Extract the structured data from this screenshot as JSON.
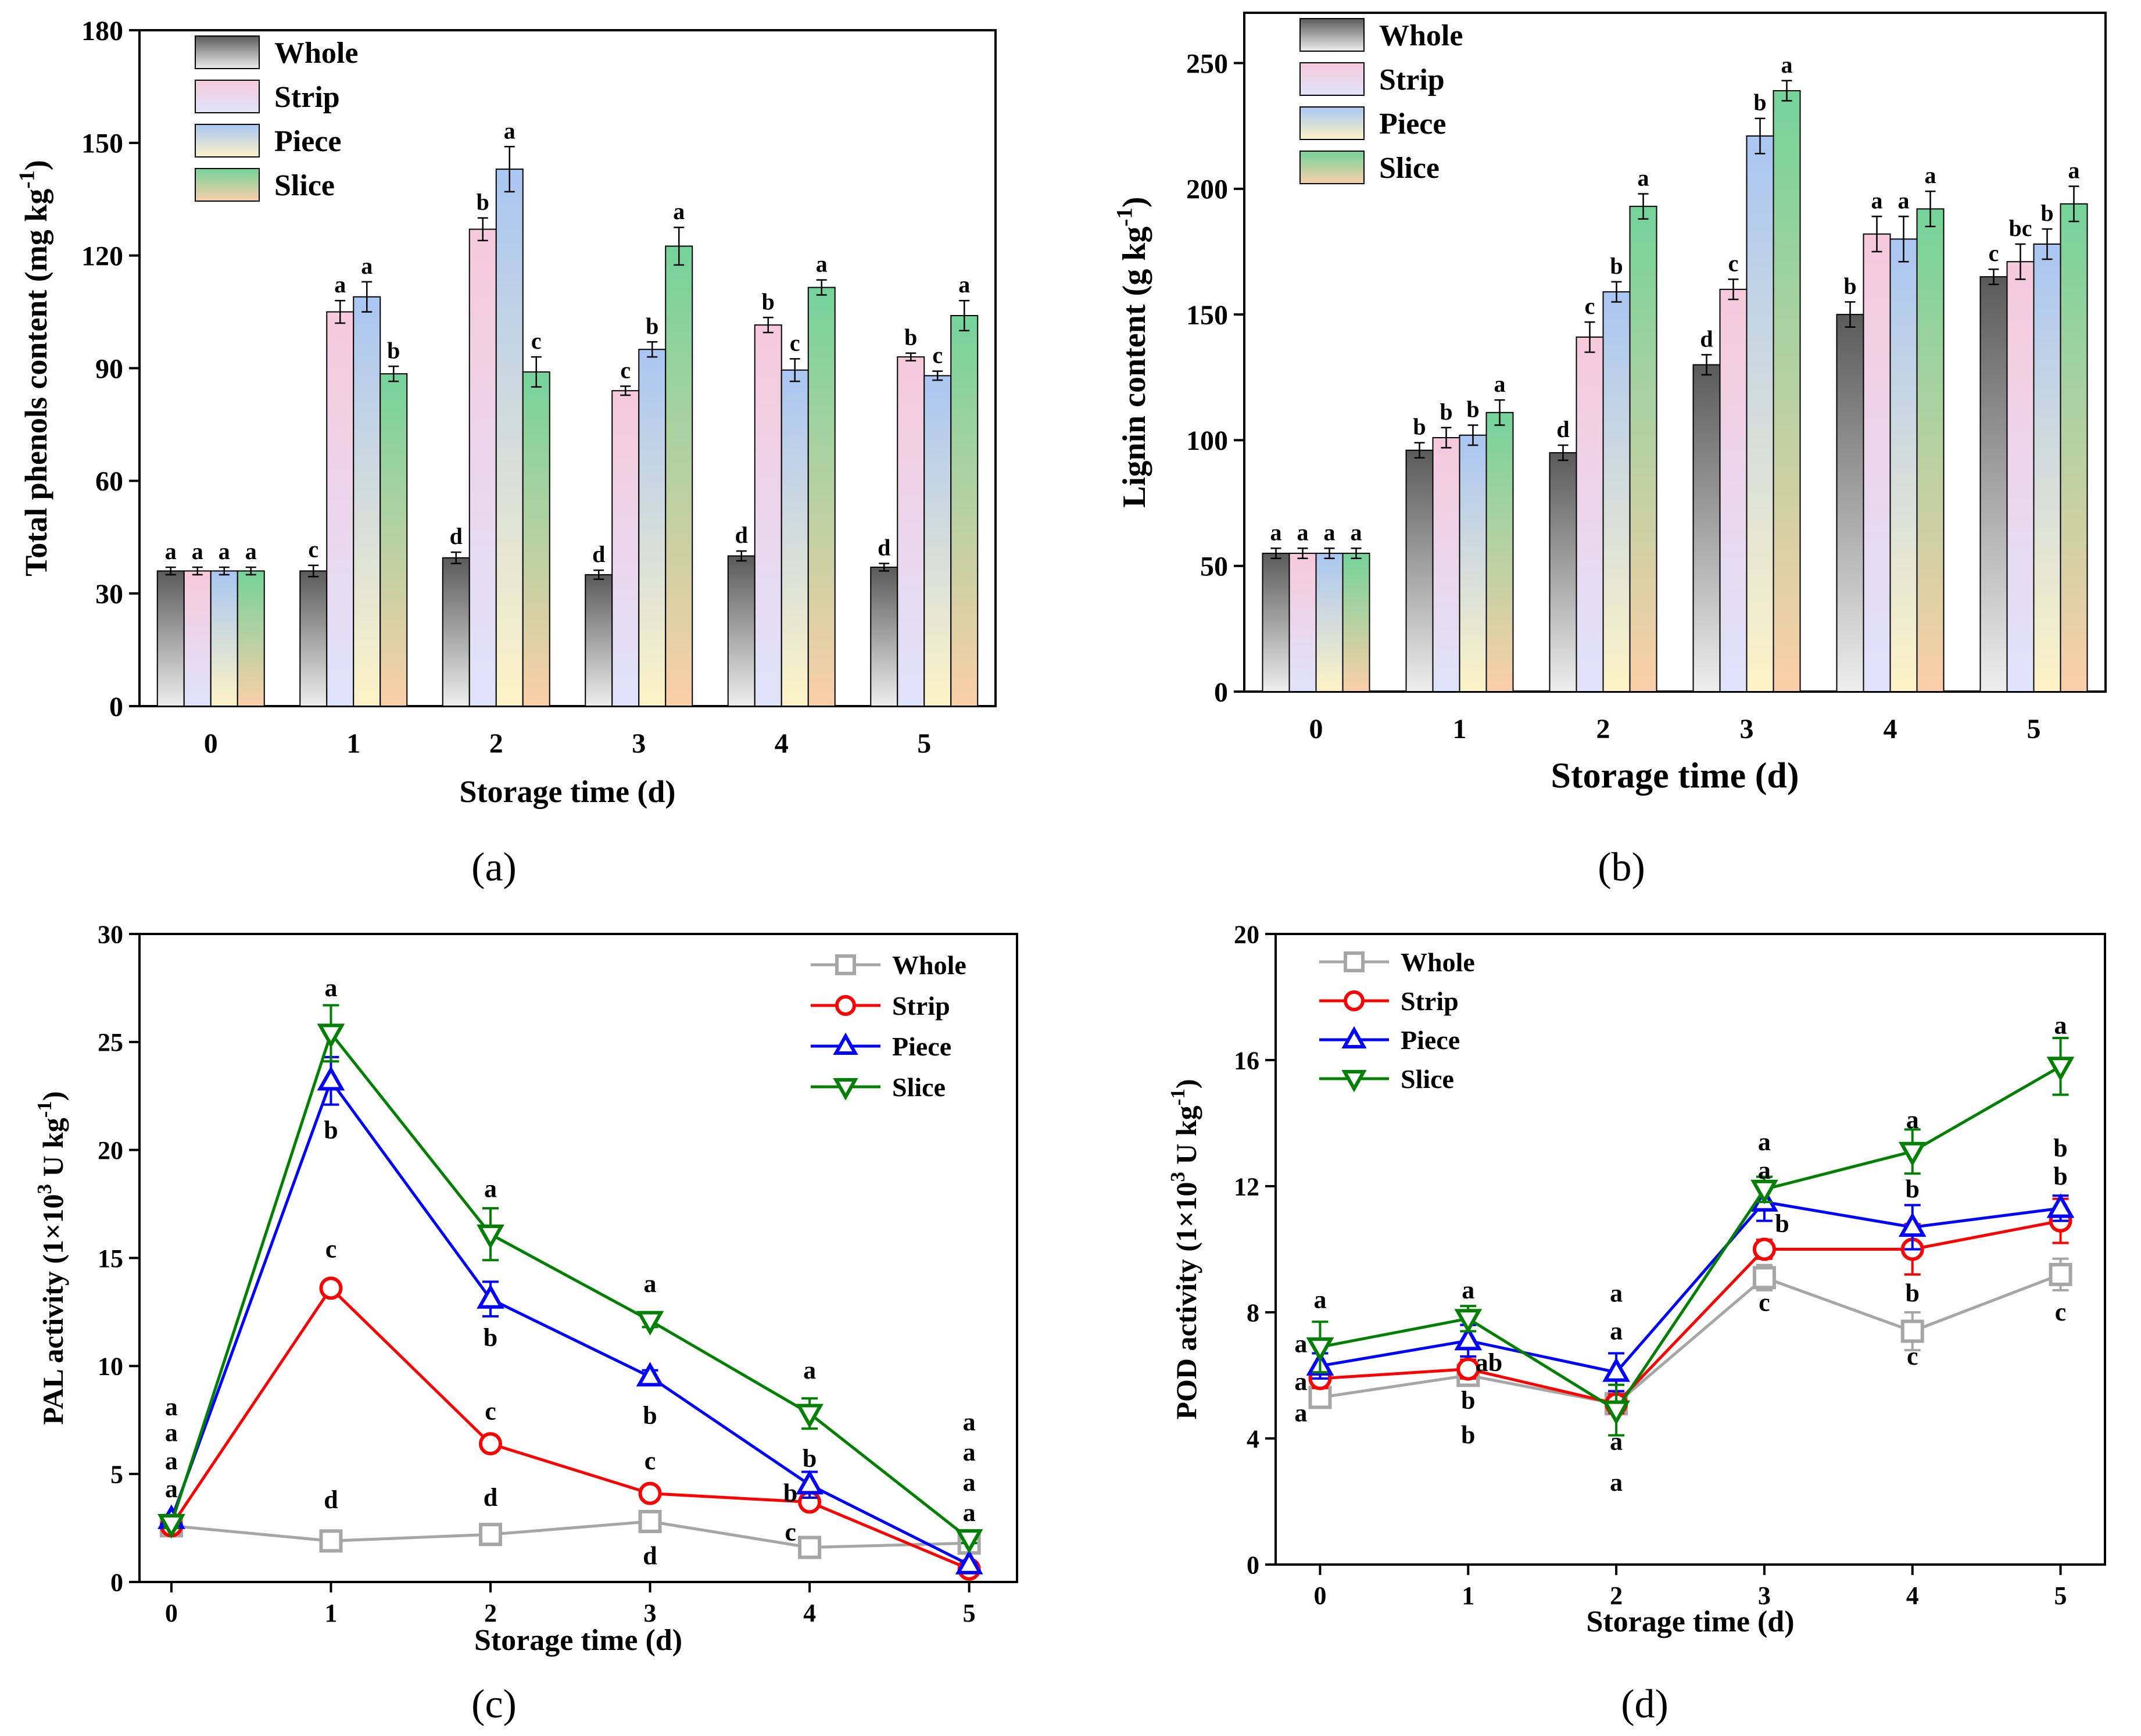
{
  "colors": {
    "whole_top": "#5a5a5a",
    "whole_bottom": "#eeeeee",
    "strip_top": "#f7c9dc",
    "strip_bottom": "#dfe3fb",
    "piece_top": "#a9c6f2",
    "piece_bottom": "#fdf3c6",
    "slice_top": "#74d39a",
    "slice_bottom": "#fbcfa8",
    "line_whole": "#a6a6a6",
    "line_strip": "#ff0000",
    "line_piece": "#0000ff",
    "line_slice": "#008000"
  },
  "chart_data": [
    {
      "id": "a",
      "type": "bar",
      "panel_label": "(a)",
      "ylabel": "Total phenols content (mg kg",
      "ylabel_sup": "-1",
      "ylabel_end": ")",
      "xlabel": "Storage time (d)",
      "ylim": [
        0,
        180
      ],
      "yticks": [
        "0",
        "30",
        "60",
        "90",
        "120",
        "150",
        "180"
      ],
      "categories": [
        "0",
        "1",
        "2",
        "3",
        "4",
        "5"
      ],
      "legend": [
        "Whole",
        "Strip",
        "Piece",
        "Slice"
      ],
      "series": [
        {
          "name": "Whole",
          "values": [
            36,
            36,
            39.5,
            35,
            40,
            37
          ],
          "errors": [
            1,
            1.5,
            1.5,
            1.2,
            1.3,
            1
          ],
          "sig": [
            "a",
            "c",
            "d",
            "d",
            "d",
            "d"
          ]
        },
        {
          "name": "Strip",
          "values": [
            36,
            105,
            127,
            84,
            101.5,
            93
          ],
          "errors": [
            1,
            3,
            3,
            1.2,
            2,
            1
          ],
          "sig": [
            "a",
            "a",
            "b",
            "c",
            "b",
            "b"
          ]
        },
        {
          "name": "Piece",
          "values": [
            36,
            109,
            143,
            95,
            89.5,
            88
          ],
          "errors": [
            1,
            4,
            6,
            2,
            3,
            1.2
          ],
          "sig": [
            "a",
            "a",
            "a",
            "b",
            "c",
            "c"
          ]
        },
        {
          "name": "Slice",
          "values": [
            36,
            88.5,
            89,
            122.5,
            111.5,
            104
          ],
          "errors": [
            1,
            2,
            4,
            5,
            2,
            4
          ],
          "sig": [
            "a",
            "b",
            "c",
            "a",
            "a",
            "a"
          ]
        }
      ]
    },
    {
      "id": "b",
      "type": "bar",
      "panel_label": "(b)",
      "ylabel": "Lignin content (g kg",
      "ylabel_sup": "-1",
      "ylabel_end": ")",
      "xlabel": "Storage time (d)",
      "ylim": [
        0,
        270
      ],
      "yticks": [
        "0",
        "50",
        "100",
        "150",
        "200",
        "250"
      ],
      "categories": [
        "0",
        "1",
        "2",
        "3",
        "4",
        "5"
      ],
      "legend": [
        "Whole",
        "Strip",
        "Piece",
        "Slice"
      ],
      "series": [
        {
          "name": "Whole",
          "values": [
            55,
            96,
            95,
            130,
            150,
            165
          ],
          "errors": [
            2,
            3,
            3,
            4,
            5,
            3
          ],
          "sig": [
            "a",
            "b",
            "d",
            "d",
            "b",
            "c"
          ]
        },
        {
          "name": "Strip",
          "values": [
            55,
            101,
            141,
            160,
            182,
            171
          ],
          "errors": [
            2,
            4,
            6,
            4,
            7,
            7
          ],
          "sig": [
            "a",
            "b",
            "c",
            "c",
            "a",
            "bc"
          ]
        },
        {
          "name": "Piece",
          "values": [
            55,
            102,
            159,
            221,
            180,
            178
          ],
          "errors": [
            2,
            4,
            4,
            7,
            9,
            6
          ],
          "sig": [
            "a",
            "b",
            "b",
            "b",
            "a",
            "b"
          ]
        },
        {
          "name": "Slice",
          "values": [
            55,
            111,
            193,
            239,
            192,
            194
          ],
          "errors": [
            2,
            5,
            5,
            4,
            7,
            7
          ],
          "sig": [
            "a",
            "a",
            "a",
            "a",
            "a",
            "a"
          ]
        }
      ]
    },
    {
      "id": "c",
      "type": "line",
      "panel_label": "(c)",
      "ylabel": "PAL activity (1×10",
      "ylabel_sup": "3",
      "ylabel_mid": " U kg",
      "ylabel_sup2": "-1",
      "ylabel_end": ")",
      "xlabel": "Storage time (d)",
      "ylim": [
        0,
        30
      ],
      "xlim": [
        -0.2,
        5.3
      ],
      "yticks": [
        "0",
        "5",
        "10",
        "15",
        "20",
        "25",
        "30"
      ],
      "x": [
        0,
        1,
        2,
        3,
        4,
        5
      ],
      "xticks": [
        "0",
        "1",
        "2",
        "3",
        "4",
        "5"
      ],
      "legend": [
        "Whole",
        "Strip",
        "Piece",
        "Slice"
      ],
      "series": [
        {
          "name": "Whole",
          "marker": "square",
          "values": [
            2.6,
            1.9,
            2.2,
            2.8,
            1.6,
            1.8
          ],
          "errors": [
            0.1,
            0.1,
            0.2,
            0.2,
            0.1,
            0.1
          ]
        },
        {
          "name": "Strip",
          "marker": "circle",
          "values": [
            2.6,
            13.6,
            6.4,
            4.1,
            3.7,
            0.6
          ],
          "errors": [
            0.1,
            0.3,
            0.2,
            0.2,
            0.2,
            0.1
          ]
        },
        {
          "name": "Piece",
          "marker": "triangle-up",
          "values": [
            2.9,
            23.2,
            13.1,
            9.5,
            4.5,
            0.8
          ],
          "errors": [
            0.2,
            1.1,
            0.8,
            0.3,
            0.6,
            0.1
          ]
        },
        {
          "name": "Slice",
          "marker": "triangle-down",
          "values": [
            2.7,
            25.4,
            16.1,
            12.1,
            7.8,
            2.0
          ],
          "errors": [
            0.2,
            1.3,
            1.2,
            0.3,
            0.7,
            0.2
          ]
        }
      ],
      "annotations": [
        {
          "x": 0,
          "y": 8.1,
          "text": "a"
        },
        {
          "x": 0,
          "y": 6.9,
          "text": "a"
        },
        {
          "x": 0,
          "y": 5.6,
          "text": "a"
        },
        {
          "x": 0,
          "y": 4.3,
          "text": "a"
        },
        {
          "x": 1,
          "y": 27.5,
          "text": "a"
        },
        {
          "x": 1,
          "y": 20.9,
          "text": "b"
        },
        {
          "x": 1,
          "y": 15.4,
          "text": "c"
        },
        {
          "x": 1,
          "y": 3.8,
          "text": "d"
        },
        {
          "x": 2,
          "y": 18.2,
          "text": "a"
        },
        {
          "x": 2,
          "y": 11.3,
          "text": "b"
        },
        {
          "x": 2,
          "y": 7.9,
          "text": "c"
        },
        {
          "x": 2,
          "y": 3.9,
          "text": "d"
        },
        {
          "x": 3,
          "y": 13.8,
          "text": "a"
        },
        {
          "x": 3,
          "y": 7.7,
          "text": "b"
        },
        {
          "x": 3,
          "y": 5.6,
          "text": "c"
        },
        {
          "x": 3,
          "y": 1.2,
          "text": "d"
        },
        {
          "x": 4,
          "y": 9.8,
          "text": "a"
        },
        {
          "x": 4,
          "y": 5.7,
          "text": "b"
        },
        {
          "x": 3.88,
          "y": 4.1,
          "text": "b"
        },
        {
          "x": 3.88,
          "y": 2.3,
          "text": "c"
        },
        {
          "x": 5,
          "y": 7.4,
          "text": "a"
        },
        {
          "x": 5,
          "y": 6.0,
          "text": "a"
        },
        {
          "x": 5,
          "y": 4.6,
          "text": "a"
        },
        {
          "x": 5,
          "y": 3.2,
          "text": "a"
        }
      ]
    },
    {
      "id": "d",
      "type": "line",
      "panel_label": "(d)",
      "ylabel": "POD activity (1×10",
      "ylabel_sup": "3",
      "ylabel_mid": " U kg",
      "ylabel_sup2": "-1",
      "ylabel_end": ")",
      "xlabel": "Storage time (d)",
      "ylim": [
        0,
        20
      ],
      "xlim": [
        -0.3,
        5.3
      ],
      "yticks": [
        "0",
        "4",
        "8",
        "12",
        "16",
        "20"
      ],
      "x": [
        0,
        1,
        2,
        3,
        4,
        5
      ],
      "xticks": [
        "0",
        "1",
        "2",
        "3",
        "4",
        "5"
      ],
      "legend": [
        "Whole",
        "Strip",
        "Piece",
        "Slice"
      ],
      "series": [
        {
          "name": "Whole",
          "marker": "square",
          "values": [
            5.3,
            6.0,
            5.1,
            9.1,
            7.4,
            9.2
          ],
          "errors": [
            0.2,
            0.3,
            0.2,
            0.4,
            0.6,
            0.5
          ]
        },
        {
          "name": "Strip",
          "marker": "circle",
          "values": [
            5.9,
            6.2,
            5.1,
            10.0,
            10.0,
            10.9
          ],
          "errors": [
            0.3,
            0.3,
            0.3,
            0.3,
            0.8,
            0.7
          ]
        },
        {
          "name": "Piece",
          "marker": "triangle-up",
          "values": [
            6.3,
            7.1,
            6.1,
            11.5,
            10.7,
            11.3
          ],
          "errors": [
            0.4,
            0.5,
            0.6,
            0.6,
            0.7,
            0.4
          ]
        },
        {
          "name": "Slice",
          "marker": "triangle-down",
          "values": [
            6.9,
            7.8,
            4.9,
            11.9,
            13.1,
            15.8
          ],
          "errors": [
            0.8,
            0.4,
            0.8,
            0.4,
            0.7,
            0.9
          ]
        }
      ],
      "annotations": [
        {
          "x": 0,
          "y": 8.4,
          "text": "a"
        },
        {
          "x": -0.13,
          "y": 7.0,
          "text": "a"
        },
        {
          "x": -0.13,
          "y": 5.8,
          "text": "a"
        },
        {
          "x": -0.13,
          "y": 4.8,
          "text": "a"
        },
        {
          "x": 1,
          "y": 8.7,
          "text": "a"
        },
        {
          "x": 1.14,
          "y": 6.4,
          "text": "ab"
        },
        {
          "x": 1,
          "y": 5.2,
          "text": "b"
        },
        {
          "x": 1,
          "y": 4.1,
          "text": "b"
        },
        {
          "x": 2,
          "y": 8.6,
          "text": "a"
        },
        {
          "x": 2,
          "y": 7.4,
          "text": "a"
        },
        {
          "x": 2,
          "y": 3.9,
          "text": "a"
        },
        {
          "x": 2,
          "y": 2.6,
          "text": "a"
        },
        {
          "x": 3,
          "y": 13.4,
          "text": "a"
        },
        {
          "x": 3,
          "y": 12.5,
          "text": "a"
        },
        {
          "x": 3.12,
          "y": 10.8,
          "text": "b"
        },
        {
          "x": 3,
          "y": 8.3,
          "text": "c"
        },
        {
          "x": 4,
          "y": 14.1,
          "text": "a"
        },
        {
          "x": 4,
          "y": 11.9,
          "text": "b"
        },
        {
          "x": 4,
          "y": 8.6,
          "text": "b"
        },
        {
          "x": 4,
          "y": 6.6,
          "text": "c"
        },
        {
          "x": 5,
          "y": 17.1,
          "text": "a"
        },
        {
          "x": 5,
          "y": 13.2,
          "text": "b"
        },
        {
          "x": 5,
          "y": 12.3,
          "text": "b"
        },
        {
          "x": 5,
          "y": 8.0,
          "text": "c"
        }
      ]
    }
  ]
}
